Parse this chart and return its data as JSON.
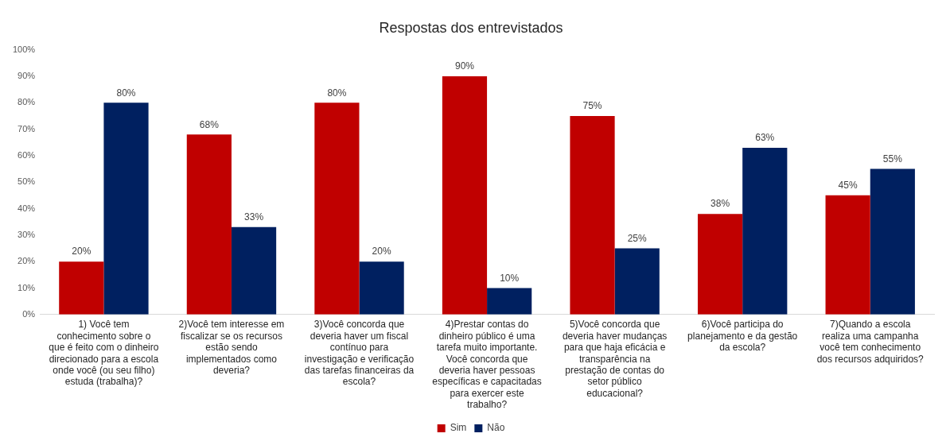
{
  "chart_data": {
    "type": "bar",
    "title": "Respostas dos entrevistados",
    "categories": [
      "1) Você tem conhecimento sobre o que é feito com o dinheiro direcionado para a escola onde você (ou seu filho) estuda (trabalha)?",
      "2)Você tem interesse em fiscalizar se os recursos estão sendo implementados como deveria?",
      "3)Você concorda que deveria haver um fiscal contínuo para investigação e verificação das tarefas financeiras da escola?",
      "4)Prestar contas do dinheiro público é uma tarefa muito importante. Você concorda que deveria haver pessoas específicas e capacitadas para exercer este trabalho?",
      "5)Você concorda que deveria haver mudanças para que haja eficácia e transparência na prestação de contas do setor público educacional?",
      "6)Você participa do planejamento e da gestão da escola?",
      "7)Quando a escola realiza uma campanha você tem conhecimento dos recursos adquiridos?"
    ],
    "series": [
      {
        "name": "Sim",
        "color": "#c00000",
        "values": [
          20,
          68,
          80,
          90,
          75,
          38,
          45
        ],
        "value_labels": [
          "20%",
          "68%",
          "80%",
          "90%",
          "75%",
          "38%",
          "45%"
        ]
      },
      {
        "name": "Não",
        "color": "#002060",
        "values": [
          80,
          33,
          20,
          10,
          25,
          63,
          55
        ],
        "value_labels": [
          "80%",
          "33%",
          "20%",
          "10%",
          "25%",
          "63%",
          "55%"
        ]
      }
    ],
    "ylim": [
      0,
      100
    ],
    "yticks": [
      {
        "value": 0,
        "label": "0%"
      },
      {
        "value": 10,
        "label": "10%"
      },
      {
        "value": 20,
        "label": "20%"
      },
      {
        "value": 30,
        "label": "30%"
      },
      {
        "value": 40,
        "label": "40%"
      },
      {
        "value": 50,
        "label": "50%"
      },
      {
        "value": 60,
        "label": "60%"
      },
      {
        "value": 70,
        "label": "70%"
      },
      {
        "value": 80,
        "label": "80%"
      },
      {
        "value": 90,
        "label": "90%"
      },
      {
        "value": 100,
        "label": "100%"
      }
    ],
    "grid": false,
    "legend": "bottom"
  }
}
